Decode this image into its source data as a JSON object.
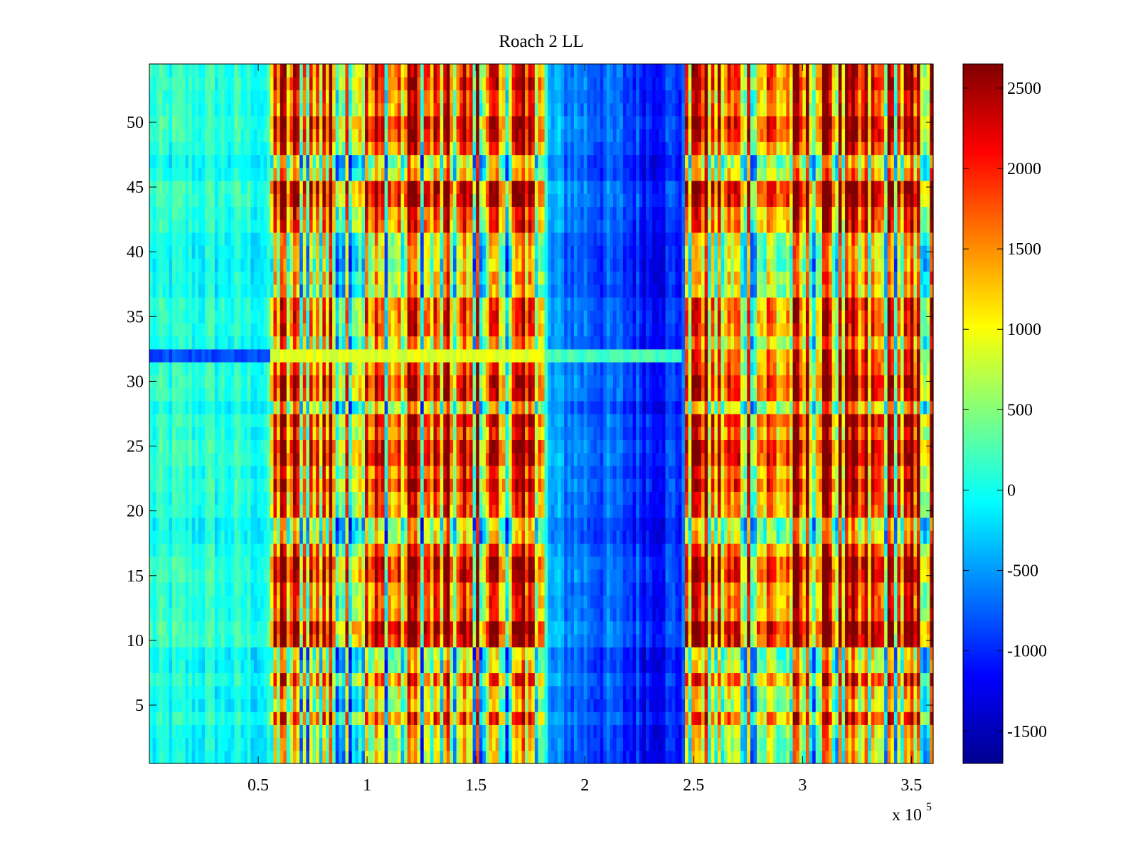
{
  "chart_data": {
    "type": "heatmap",
    "title": "Roach 2 LL",
    "xlabel": "",
    "ylabel": "",
    "x_exponent_label": {
      "base": "x 10",
      "exponent": "5"
    },
    "xlim": [
      0,
      3.6
    ],
    "ylim": [
      0.5,
      54.5
    ],
    "x_tick_values": [
      0.5,
      1,
      1.5,
      2,
      2.5,
      3,
      3.5
    ],
    "x_tick_labels": [
      "0.5",
      "1",
      "1.5",
      "2",
      "2.5",
      "3",
      "3.5"
    ],
    "y_tick_values": [
      5,
      10,
      15,
      20,
      25,
      30,
      35,
      40,
      45,
      50
    ],
    "y_tick_labels": [
      "5",
      "10",
      "15",
      "20",
      "25",
      "30",
      "35",
      "40",
      "45",
      "50"
    ],
    "rows": 54,
    "colormap": "jet",
    "color_range": [
      -1700,
      2650
    ],
    "colorbar_tick_values": [
      -1500,
      -1000,
      -500,
      0,
      500,
      1000,
      1500,
      2000,
      2500
    ],
    "colorbar_tick_labels": [
      "-1500",
      "-1000",
      "-500",
      "0",
      "500",
      "1000",
      "1500",
      "2000",
      "2500"
    ],
    "column_profile": {
      "x": [
        0.0,
        0.25,
        0.55,
        0.57,
        0.8,
        1.0,
        1.2,
        1.4,
        1.57,
        1.6,
        1.8,
        1.83,
        2.0,
        2.3,
        2.45,
        2.47,
        2.55,
        2.8,
        3.0,
        3.13,
        3.15,
        3.4,
        3.6
      ],
      "mean": [
        50,
        80,
        0,
        1400,
        1300,
        1250,
        1300,
        1250,
        1350,
        1250,
        1200,
        -500,
        -650,
        -1000,
        -900,
        1100,
        1300,
        1300,
        1350,
        1400,
        1350,
        1400,
        1400
      ],
      "spread": [
        230,
        230,
        230,
        1500,
        1500,
        1500,
        1500,
        1500,
        1500,
        1500,
        1500,
        280,
        280,
        280,
        280,
        1400,
        1400,
        1400,
        1400,
        1400,
        1400,
        1400,
        1400
      ]
    },
    "bright_columns": [
      0.58,
      0.8,
      1.21,
      1.57,
      1.58,
      1.76,
      2.5,
      2.52,
      3.13
    ],
    "bright_column_value": 2000,
    "row_offsets": [
      {
        "row": 1,
        "offset": -900
      },
      {
        "row": 2,
        "offset": -900
      },
      {
        "row": 3,
        "offset": -800
      },
      {
        "row": 5,
        "offset": -900
      },
      {
        "row": 6,
        "offset": -700
      },
      {
        "row": 8,
        "offset": -900
      },
      {
        "row": 9,
        "offset": -1000
      },
      {
        "row": 10,
        "offset": 500
      },
      {
        "row": 11,
        "offset": 700
      },
      {
        "row": 15,
        "offset": 500
      },
      {
        "row": 16,
        "offset": 500
      },
      {
        "row": 18,
        "offset": -800
      },
      {
        "row": 19,
        "offset": -900
      },
      {
        "row": 22,
        "offset": 400
      },
      {
        "row": 24,
        "offset": 500
      },
      {
        "row": 25,
        "offset": 500
      },
      {
        "row": 27,
        "offset": 400
      },
      {
        "row": 28,
        "offset": -700
      },
      {
        "row": 29,
        "offset": 300
      },
      {
        "row": 30,
        "offset": 400
      },
      {
        "row": 33,
        "offset": -500
      },
      {
        "row": 37,
        "offset": -800
      },
      {
        "row": 38,
        "offset": -600
      },
      {
        "row": 39,
        "offset": -900
      },
      {
        "row": 40,
        "offset": -800
      },
      {
        "row": 41,
        "offset": -700
      },
      {
        "row": 44,
        "offset": 500
      },
      {
        "row": 45,
        "offset": 600
      },
      {
        "row": 46,
        "offset": -600
      },
      {
        "row": 47,
        "offset": -900
      },
      {
        "row": 49,
        "offset": 400
      },
      {
        "row": 50,
        "offset": 500
      },
      {
        "row": 53,
        "offset": 300
      },
      {
        "row": 54,
        "offset": 200
      }
    ],
    "row_overrides": [
      {
        "row": 32,
        "x_range": [
          0,
          0.55
        ],
        "value": -850
      },
      {
        "row": 32,
        "x_range": [
          0.55,
          1.82
        ],
        "value": 900
      },
      {
        "row": 32,
        "x_range": [
          1.82,
          2.45
        ],
        "value": 200
      }
    ]
  }
}
